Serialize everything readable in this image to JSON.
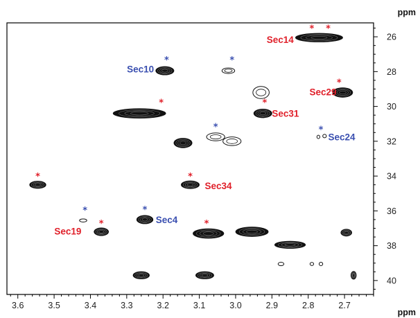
{
  "chart_data": {
    "type": "scatter",
    "title": "",
    "x_unit": "ppm",
    "y_unit": "ppm",
    "xlim": [
      3.63,
      2.62
    ],
    "ylim": [
      25.2,
      40.8
    ],
    "x_ticks": [
      "3.6",
      "3.5",
      "3.4",
      "3.3",
      "3.2",
      "3.1",
      "3.0",
      "2.9",
      "2.8",
      "2.7"
    ],
    "y_ticks": [
      "26",
      "28",
      "30",
      "32",
      "34",
      "36",
      "38",
      "40"
    ],
    "colors": {
      "red": "#e0202a",
      "blue": "#3a4fb0",
      "contour": "#111111"
    },
    "labels": [
      {
        "text": "Sec14",
        "x": 2.84,
        "y": 26.15,
        "color": "red",
        "align": "end"
      },
      {
        "text": "Sec10",
        "x": 3.225,
        "y": 27.85,
        "color": "blue",
        "align": "end"
      },
      {
        "text": "Sec29",
        "x": 2.722,
        "y": 29.15,
        "color": "red",
        "align": "end"
      },
      {
        "text": "Sec31",
        "x": 2.9,
        "y": 30.4,
        "color": "red",
        "align": "start"
      },
      {
        "text": "Sec24",
        "x": 2.745,
        "y": 31.75,
        "color": "blue",
        "align": "start"
      },
      {
        "text": "Sec34",
        "x": 3.085,
        "y": 34.55,
        "color": "red",
        "align": "start"
      },
      {
        "text": "Sec4",
        "x": 3.22,
        "y": 36.5,
        "color": "blue",
        "align": "start"
      },
      {
        "text": "Sec19",
        "x": 3.425,
        "y": 37.15,
        "color": "red",
        "align": "end"
      }
    ],
    "stars": [
      {
        "x": 2.79,
        "y": 25.5,
        "color": "red"
      },
      {
        "x": 2.745,
        "y": 25.5,
        "color": "red"
      },
      {
        "x": 3.19,
        "y": 27.3,
        "color": "blue"
      },
      {
        "x": 3.01,
        "y": 27.3,
        "color": "blue"
      },
      {
        "x": 2.715,
        "y": 28.6,
        "color": "red"
      },
      {
        "x": 3.205,
        "y": 29.75,
        "color": "red"
      },
      {
        "x": 2.92,
        "y": 29.75,
        "color": "red"
      },
      {
        "x": 3.055,
        "y": 31.15,
        "color": "blue"
      },
      {
        "x": 2.765,
        "y": 31.3,
        "color": "blue"
      },
      {
        "x": 3.545,
        "y": 34.0,
        "color": "red"
      },
      {
        "x": 3.125,
        "y": 34.0,
        "color": "red"
      },
      {
        "x": 3.415,
        "y": 35.95,
        "color": "blue"
      },
      {
        "x": 3.25,
        "y": 35.9,
        "color": "blue"
      },
      {
        "x": 3.37,
        "y": 36.7,
        "color": "red"
      },
      {
        "x": 3.08,
        "y": 36.7,
        "color": "red"
      }
    ],
    "peaks": [
      {
        "x": 2.77,
        "y": 26.05,
        "w": 0.13,
        "h": 0.5,
        "fill": true
      },
      {
        "x": 3.195,
        "y": 27.95,
        "w": 0.05,
        "h": 0.48,
        "fill": true
      },
      {
        "x": 3.02,
        "y": 27.95,
        "w": 0.035,
        "h": 0.32,
        "fill": false
      },
      {
        "x": 2.93,
        "y": 29.2,
        "w": 0.045,
        "h": 0.7,
        "fill": false
      },
      {
        "x": 2.705,
        "y": 29.2,
        "w": 0.055,
        "h": 0.55,
        "fill": true
      },
      {
        "x": 3.265,
        "y": 30.4,
        "w": 0.145,
        "h": 0.55,
        "fill": true
      },
      {
        "x": 2.925,
        "y": 30.4,
        "w": 0.05,
        "h": 0.5,
        "fill": true
      },
      {
        "x": 3.055,
        "y": 31.75,
        "w": 0.05,
        "h": 0.45,
        "fill": false
      },
      {
        "x": 3.01,
        "y": 32.0,
        "w": 0.05,
        "h": 0.5,
        "fill": false
      },
      {
        "x": 3.145,
        "y": 32.1,
        "w": 0.05,
        "h": 0.55,
        "fill": true
      },
      {
        "x": 2.772,
        "y": 31.75,
        "w": 0.008,
        "h": 0.2,
        "fill": false
      },
      {
        "x": 2.755,
        "y": 31.7,
        "w": 0.01,
        "h": 0.2,
        "fill": false
      },
      {
        "x": 3.545,
        "y": 34.5,
        "w": 0.045,
        "h": 0.42,
        "fill": true
      },
      {
        "x": 3.125,
        "y": 34.5,
        "w": 0.05,
        "h": 0.45,
        "fill": true
      },
      {
        "x": 3.42,
        "y": 36.55,
        "w": 0.02,
        "h": 0.18,
        "fill": false
      },
      {
        "x": 3.25,
        "y": 36.5,
        "w": 0.045,
        "h": 0.48,
        "fill": true
      },
      {
        "x": 3.37,
        "y": 37.2,
        "w": 0.04,
        "h": 0.45,
        "fill": true
      },
      {
        "x": 3.075,
        "y": 37.3,
        "w": 0.085,
        "h": 0.55,
        "fill": true
      },
      {
        "x": 2.955,
        "y": 37.2,
        "w": 0.09,
        "h": 0.55,
        "fill": true
      },
      {
        "x": 2.85,
        "y": 37.95,
        "w": 0.085,
        "h": 0.42,
        "fill": true
      },
      {
        "x": 2.695,
        "y": 37.25,
        "w": 0.03,
        "h": 0.4,
        "fill": true
      },
      {
        "x": 2.875,
        "y": 39.05,
        "w": 0.016,
        "h": 0.2,
        "fill": false
      },
      {
        "x": 2.79,
        "y": 39.05,
        "w": 0.01,
        "h": 0.18,
        "fill": false
      },
      {
        "x": 2.765,
        "y": 39.05,
        "w": 0.01,
        "h": 0.2,
        "fill": false
      },
      {
        "x": 2.675,
        "y": 39.7,
        "w": 0.015,
        "h": 0.45,
        "fill": true
      },
      {
        "x": 3.26,
        "y": 39.7,
        "w": 0.045,
        "h": 0.42,
        "fill": true
      },
      {
        "x": 3.085,
        "y": 39.7,
        "w": 0.05,
        "h": 0.42,
        "fill": true
      }
    ]
  }
}
